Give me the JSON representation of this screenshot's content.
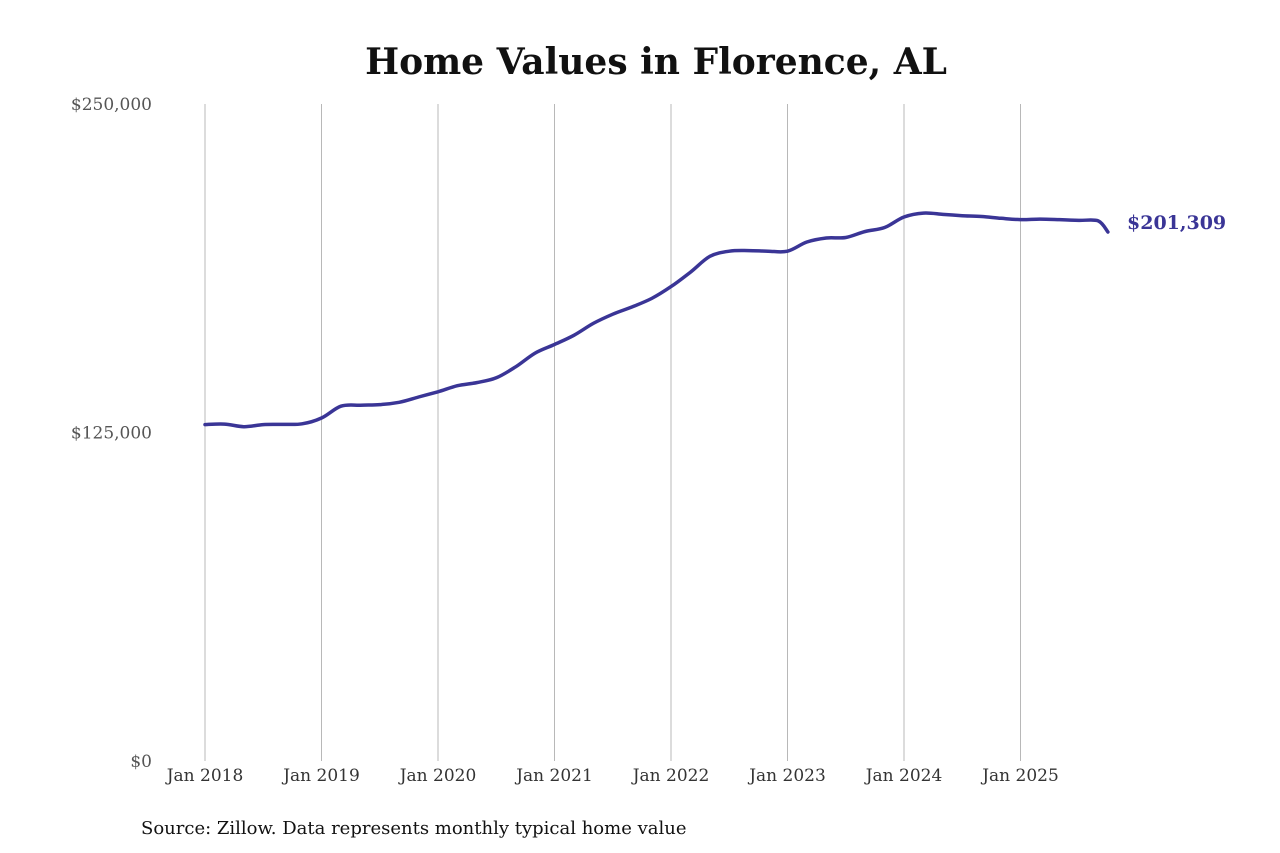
{
  "chart_data": {
    "type": "line",
    "title": "Home Values in Florence, AL",
    "source": "Source: Zillow. Data represents monthly typical home value",
    "ylim": [
      0,
      250000
    ],
    "y_ticks": [
      {
        "value": 0,
        "label": "$0"
      },
      {
        "value": 125000,
        "label": "$125,000"
      },
      {
        "value": 250000,
        "label": "$250,000"
      }
    ],
    "x_ticks": [
      {
        "date": "2018-01",
        "label": "Jan 2018"
      },
      {
        "date": "2019-01",
        "label": "Jan 2019"
      },
      {
        "date": "2020-01",
        "label": "Jan 2020"
      },
      {
        "date": "2021-01",
        "label": "Jan 2021"
      },
      {
        "date": "2022-01",
        "label": "Jan 2022"
      },
      {
        "date": "2023-01",
        "label": "Jan 2023"
      },
      {
        "date": "2024-01",
        "label": "Jan 2024"
      },
      {
        "date": "2025-01",
        "label": "Jan 2025"
      }
    ],
    "x_range": [
      "2018-01",
      "2025-10"
    ],
    "grid": "vertical",
    "line_color": "#3a3596",
    "end_label": "$201,309",
    "series": [
      {
        "x": [
          "2018-01",
          "2018-03",
          "2018-05",
          "2018-07",
          "2018-09",
          "2018-11",
          "2019-01",
          "2019-03",
          "2019-05",
          "2019-07",
          "2019-09",
          "2019-11",
          "2020-01",
          "2020-03",
          "2020-05",
          "2020-07",
          "2020-09",
          "2020-11",
          "2021-01",
          "2021-03",
          "2021-05",
          "2021-07",
          "2021-09",
          "2021-11",
          "2022-01",
          "2022-03",
          "2022-05",
          "2022-07",
          "2022-09",
          "2022-11",
          "2023-01",
          "2023-03",
          "2023-05",
          "2023-07",
          "2023-09",
          "2023-11",
          "2024-01",
          "2024-03",
          "2024-05",
          "2024-07",
          "2024-09",
          "2024-11",
          "2025-01",
          "2025-03",
          "2025-05",
          "2025-07",
          "2025-09",
          "2025-10"
        ],
        "values": [
          128000,
          128200,
          127200,
          128000,
          128100,
          128300,
          130500,
          135000,
          135400,
          135600,
          136500,
          138500,
          140500,
          142800,
          144000,
          145800,
          150000,
          155200,
          158500,
          162000,
          166500,
          170000,
          172800,
          176000,
          180500,
          186000,
          192000,
          194000,
          194200,
          194000,
          194000,
          197500,
          199000,
          199200,
          201500,
          203000,
          207000,
          208500,
          208000,
          207500,
          207200,
          206500,
          206000,
          206200,
          206000,
          205700,
          205500,
          201309
        ]
      }
    ]
  }
}
